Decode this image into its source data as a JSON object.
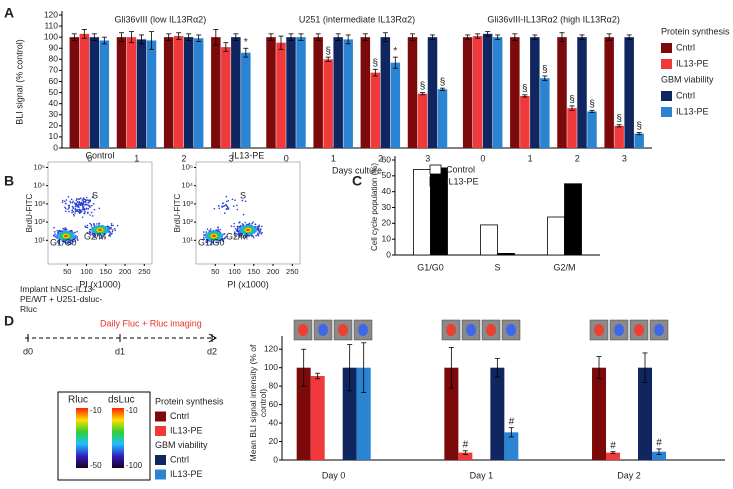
{
  "panel_labels": [
    "A",
    "B",
    "C",
    "D"
  ],
  "chart_data": [
    {
      "type": "grouped_bar",
      "ylabel": "BLI signal (% control)",
      "xlabel": "Days culture",
      "ylim": [
        0,
        120
      ],
      "yticks": [
        0,
        10,
        20,
        30,
        40,
        50,
        60,
        70,
        80,
        90,
        100,
        110,
        120
      ],
      "legend_groups": [
        {
          "title": "Protein synthesis",
          "series": [
            {
              "name": "Cntrl",
              "color": "#7d0a0a"
            },
            {
              "name": "IL13-PE",
              "color": "#f0393b"
            }
          ]
        },
        {
          "title": "GBM viability",
          "series": [
            {
              "name": "Cntrl",
              "color": "#0f2660"
            },
            {
              "name": "IL13-PE",
              "color": "#2a84d2"
            }
          ]
        }
      ],
      "panels": [
        {
          "title": "Gli36vIII (low IL13Rα2)",
          "categories": [
            "0",
            "1",
            "2",
            "3"
          ],
          "series": [
            {
              "values": [
                100,
                100,
                100,
                100
              ],
              "errors": [
                3,
                4,
                3,
                7
              ]
            },
            {
              "values": [
                103,
                100,
                101,
                91
              ],
              "errors": [
                4,
                5,
                3,
                4
              ]
            },
            {
              "values": [
                100,
                98,
                100,
                100
              ],
              "errors": [
                3,
                4,
                3,
                3
              ]
            },
            {
              "values": [
                97,
                97,
                99,
                86
              ],
              "errors": [
                3,
                8,
                3,
                4
              ],
              "marks": [
                null,
                null,
                null,
                "*"
              ]
            }
          ]
        },
        {
          "title": "U251 (intermediate IL13Rα2)",
          "categories": [
            "0",
            "1",
            "2",
            "3"
          ],
          "series": [
            {
              "values": [
                100,
                100,
                100,
                100
              ],
              "errors": [
                3,
                3,
                3,
                3
              ]
            },
            {
              "values": [
                95,
                80,
                68,
                49
              ],
              "errors": [
                6,
                2,
                3,
                1
              ],
              "marks": [
                null,
                "§",
                "§",
                "§"
              ]
            },
            {
              "values": [
                100,
                100,
                100,
                100
              ],
              "errors": [
                3,
                3,
                4,
                2
              ]
            },
            {
              "values": [
                100,
                98,
                77,
                53
              ],
              "errors": [
                3,
                4,
                5,
                1
              ],
              "marks": [
                null,
                null,
                "*",
                "§"
              ]
            }
          ]
        },
        {
          "title": "Gli36vIII-IL13Rα2 (high IL13Rα2)",
          "categories": [
            "0",
            "1",
            "2",
            "3"
          ],
          "series": [
            {
              "values": [
                100,
                100,
                100,
                100
              ],
              "errors": [
                2,
                3,
                4,
                3
              ]
            },
            {
              "values": [
                101,
                47,
                36,
                20
              ],
              "errors": [
                2,
                1,
                2,
                1
              ],
              "marks": [
                null,
                "§",
                "§",
                "§"
              ]
            },
            {
              "values": [
                103,
                100,
                100,
                100
              ],
              "errors": [
                2,
                2,
                2,
                2
              ]
            },
            {
              "values": [
                100,
                63,
                33,
                13
              ],
              "errors": [
                2,
                2,
                1,
                1
              ],
              "marks": [
                null,
                "§",
                "§",
                "§"
              ]
            }
          ]
        }
      ]
    },
    {
      "type": "density_scatter",
      "title": "Control",
      "xlabel": "PI (x1000)",
      "ylabel": "BrdU-FITC",
      "xlim": [
        0,
        270
      ],
      "xticks": [
        50,
        100,
        150,
        200,
        250
      ],
      "log_y": true,
      "ylim": [
        0.5,
        200000
      ],
      "yticks": [
        {
          "value": 10,
          "label": "10¹"
        },
        {
          "value": 100,
          "label": "10²"
        },
        {
          "value": 1000,
          "label": "10³"
        },
        {
          "value": 10000,
          "label": "10⁴"
        },
        {
          "value": 100000,
          "label": "10⁵"
        }
      ],
      "annotations": [
        "S",
        "G1/G0",
        "G2/M"
      ]
    },
    {
      "type": "density_scatter",
      "title": "IL13-PE",
      "xlabel": "PI (x1000)",
      "ylabel": "BrdU-FITC",
      "xlim": [
        0,
        270
      ],
      "xticks": [
        50,
        100,
        150,
        200,
        250
      ],
      "log_y": true,
      "ylim": [
        0.5,
        200000
      ],
      "yticks": [
        {
          "value": 10,
          "label": "10¹"
        },
        {
          "value": 100,
          "label": "10²"
        },
        {
          "value": 1000,
          "label": "10³"
        },
        {
          "value": 10000,
          "label": "10⁴"
        },
        {
          "value": 100000,
          "label": "10⁵"
        }
      ],
      "annotations": [
        "S",
        "G1/G0",
        "G2/M"
      ]
    },
    {
      "type": "bar",
      "ylabel": "Cell cycle population (%)",
      "ylim": [
        0,
        60
      ],
      "yticks": [
        0,
        10,
        20,
        30,
        40,
        50,
        60
      ],
      "categories": [
        "G1/G0",
        "S",
        "G2/M"
      ],
      "series": [
        {
          "name": "Control",
          "color": "#ffffff",
          "values": [
            54,
            19,
            24
          ]
        },
        {
          "name": "IL13-PE",
          "color": "#000000",
          "values": [
            55,
            1,
            45
          ]
        }
      ]
    },
    {
      "type": "grouped_bar",
      "ylabel": "Mean BLI signal intensity (% of control)",
      "ylim": [
        0,
        130
      ],
      "yticks": [
        0,
        20,
        40,
        60,
        80,
        100,
        120
      ],
      "legend_groups": [
        {
          "title": "Protein synthesis",
          "series": [
            {
              "name": "Cntrl",
              "color": "#7d0a0a"
            },
            {
              "name": "IL13-PE",
              "color": "#f0393b"
            }
          ]
        },
        {
          "title": "GBM viability",
          "series": [
            {
              "name": "Cntrl",
              "color": "#0f2660"
            },
            {
              "name": "IL13-PE",
              "color": "#2a84d2"
            }
          ]
        }
      ],
      "panels": [
        {
          "categories": [
            "Day 0",
            "Day 1",
            "Day 2"
          ],
          "series": [
            {
              "values": [
                100,
                100,
                100
              ],
              "errors": [
                20,
                22,
                12
              ]
            },
            {
              "values": [
                91,
                8,
                8
              ],
              "errors": [
                3,
                2,
                1
              ],
              "marks": [
                null,
                "#",
                "#"
              ]
            },
            {
              "values": [
                100,
                100,
                100
              ],
              "errors": [
                25,
                10,
                16
              ]
            },
            {
              "values": [
                100,
                30,
                9
              ],
              "errors": [
                27,
                5,
                3
              ],
              "marks": [
                null,
                "#",
                "#"
              ]
            }
          ]
        }
      ]
    }
  ],
  "timeline": {
    "implant": "Implant hNSC-IL13-PE/WT + U251-dsluc-Rluc",
    "imaging": "Daily Fluc + Rluc imaging",
    "days": [
      "d0",
      "d1",
      "d2"
    ]
  },
  "color_scales": [
    {
      "name": "Rluc",
      "max": -10,
      "min": -50
    },
    {
      "name": "dsLuc",
      "max": -10,
      "min": -100
    }
  ]
}
